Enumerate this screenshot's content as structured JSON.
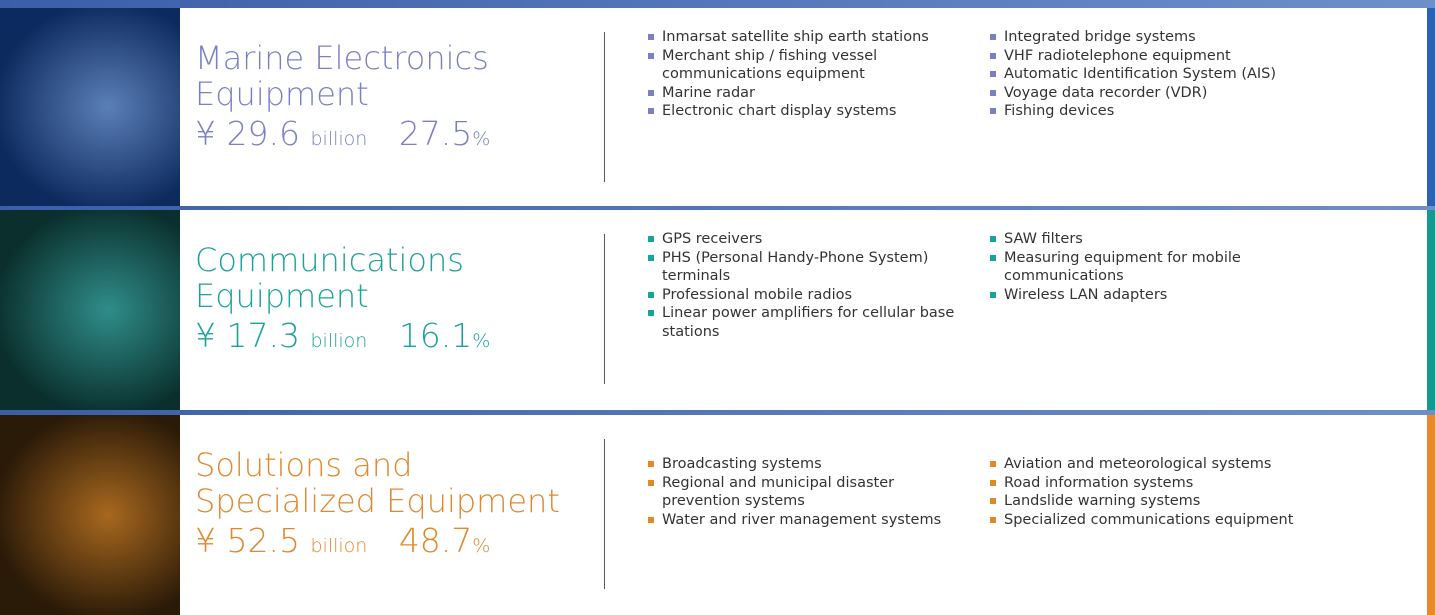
{
  "sections": [
    {
      "title": [
        "Marine Electronics",
        "Equipment"
      ],
      "currency": "¥",
      "amount": "29.6",
      "unit": "billion",
      "share": "27.5",
      "percent_sign": "%",
      "color": "#7b80c2",
      "bar": "#2a63b3",
      "image": [
        "#0d2a5e",
        "#5b7fb8"
      ],
      "columns": [
        [
          "Inmarsat satellite ship earth stations",
          "Merchant ship / fishing vessel communications equipment",
          "Marine radar",
          "Electronic chart display systems"
        ],
        [
          "Integrated bridge systems",
          "VHF radiotelephone equipment",
          "Automatic Identification System (AIS)",
          "Voyage data recorder (VDR)",
          "Fishing devices"
        ]
      ]
    },
    {
      "title": [
        "Communications",
        "Equipment"
      ],
      "currency": "¥",
      "amount": "17.3",
      "unit": "billion",
      "share": "16.1",
      "percent_sign": "%",
      "color": "#1aa39a",
      "bar": "#139a8f",
      "image": [
        "#0a2f2c",
        "#2f8d8a"
      ],
      "columns": [
        [
          "GPS receivers",
          "PHS (Personal Handy-Phone System) terminals",
          "Professional mobile radios",
          "Linear power amplifiers for cellular base stations"
        ],
        [
          "SAW filters",
          "Measuring equipment for mobile communications",
          "Wireless LAN adapters"
        ]
      ]
    },
    {
      "title": [
        "Solutions and",
        "Specialized Equipment"
      ],
      "currency": "¥",
      "amount": "52.5",
      "unit": "billion",
      "share": "48.7",
      "percent_sign": "%",
      "color": "#e0892c",
      "bar": "#e8892a",
      "image": [
        "#2a1a08",
        "#a8681e"
      ],
      "columns": [
        [
          "Broadcasting systems",
          "Regional and municipal disaster prevention systems",
          "Water and river management systems"
        ],
        [
          "Aviation and meteorological systems",
          "Road information systems",
          "Landslide warning systems",
          "Specialized communications equipment"
        ]
      ]
    }
  ]
}
